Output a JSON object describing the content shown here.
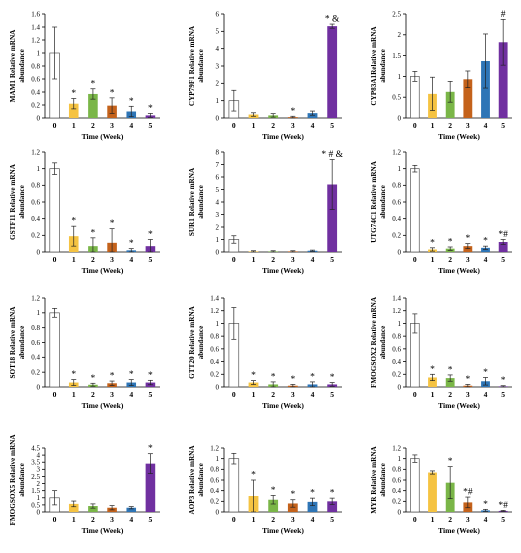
{
  "bar_colors": [
    "#ffffff",
    "#f5c342",
    "#7ab648",
    "#c4621b",
    "#2e75b6",
    "#7030a0"
  ],
  "chart_data": [
    {
      "type": "bar",
      "ylabel": "MAM1 Relative mRNA abundance",
      "xlabel": "Time (Week)",
      "categories": [
        "0",
        "1",
        "2",
        "3",
        "4",
        "5"
      ],
      "ylim": [
        0,
        1.6
      ],
      "yticks": [
        "0",
        "0.2",
        "0.4",
        "0.6",
        "0.8",
        "1",
        "1.2",
        "1.4",
        "1.6"
      ],
      "ytick_values": [
        0,
        0.2,
        0.4,
        0.6,
        0.8,
        1,
        1.2,
        1.4,
        1.6
      ],
      "values": [
        1.0,
        0.22,
        0.37,
        0.19,
        0.1,
        0.04
      ],
      "errors": [
        0.4,
        0.08,
        0.08,
        0.12,
        0.08,
        0.03
      ],
      "annotations": [
        "",
        "*",
        "*",
        "*",
        "*",
        "*"
      ]
    },
    {
      "type": "bar",
      "ylabel": "CYP79F1 Relative mRNA abundance",
      "xlabel": "Time (Week)",
      "categories": [
        "0",
        "1",
        "2",
        "3",
        "4",
        "5"
      ],
      "ylim": [
        0,
        6
      ],
      "yticks": [
        "0",
        "1",
        "2",
        "3",
        "4",
        "5",
        "6"
      ],
      "ytick_values": [
        0,
        1,
        2,
        3,
        4,
        5,
        6
      ],
      "values": [
        1.0,
        0.2,
        0.15,
        0.05,
        0.28,
        5.3
      ],
      "errors": [
        0.6,
        0.1,
        0.1,
        0.05,
        0.12,
        0.12
      ],
      "annotations": [
        "",
        "",
        "",
        "*",
        "",
        "* &"
      ]
    },
    {
      "type": "bar",
      "ylabel": "CYP83A1Relative mRNA abundance",
      "xlabel": "Time (Week)",
      "categories": [
        "0",
        "1",
        "2",
        "3",
        "4",
        "5"
      ],
      "ylim": [
        0,
        2.5
      ],
      "yticks": [
        "0",
        "0.5",
        "1",
        "1.5",
        "2",
        "2.5"
      ],
      "ytick_values": [
        0,
        0.5,
        1,
        1.5,
        2,
        2.5
      ],
      "values": [
        1.0,
        0.58,
        0.63,
        0.93,
        1.37,
        1.82
      ],
      "errors": [
        0.12,
        0.4,
        0.25,
        0.2,
        0.65,
        0.55
      ],
      "annotations": [
        "",
        "",
        "",
        "",
        "",
        "#"
      ]
    },
    {
      "type": "bar",
      "ylabel": "GSTF11 Relative mRNA abundance",
      "xlabel": "Time (Week)",
      "categories": [
        "0",
        "1",
        "2",
        "3",
        "4",
        "5"
      ],
      "ylim": [
        0,
        1.2
      ],
      "yticks": [
        "0",
        "0.2",
        "0.4",
        "0.6",
        "0.8",
        "1",
        "1.2"
      ],
      "ytick_values": [
        0,
        0.2,
        0.4,
        0.6,
        0.8,
        1,
        1.2
      ],
      "values": [
        1.0,
        0.19,
        0.07,
        0.11,
        0.02,
        0.07
      ],
      "errors": [
        0.07,
        0.12,
        0.1,
        0.17,
        0.02,
        0.08
      ],
      "annotations": [
        "",
        "*",
        "*",
        "*",
        "*",
        "*"
      ]
    },
    {
      "type": "bar",
      "ylabel": "SUR1 Relative mRNA abundance",
      "xlabel": "Time (Week)",
      "categories": [
        "0",
        "1",
        "2",
        "3",
        "4",
        "5"
      ],
      "ylim": [
        0,
        8
      ],
      "yticks": [
        "0",
        "1",
        "2",
        "3",
        "4",
        "5",
        "6",
        "7",
        "8"
      ],
      "ytick_values": [
        0,
        1,
        2,
        3,
        4,
        5,
        6,
        7,
        8
      ],
      "values": [
        1.0,
        0.05,
        0.05,
        0.05,
        0.1,
        5.4
      ],
      "errors": [
        0.3,
        0.05,
        0.05,
        0.05,
        0.05,
        2.0
      ],
      "annotations": [
        "",
        "",
        "",
        "",
        "",
        "* # &"
      ]
    },
    {
      "type": "bar",
      "ylabel": "UTG74C1 Relative mRNA abundance",
      "xlabel": "Time (Week)",
      "categories": [
        "0",
        "1",
        "2",
        "3",
        "4",
        "5"
      ],
      "ylim": [
        0,
        1.2
      ],
      "yticks": [
        "0",
        "0.2",
        "0.4",
        "0.6",
        "0.8",
        "1",
        "1.2"
      ],
      "ytick_values": [
        0,
        0.2,
        0.4,
        0.6,
        0.8,
        1,
        1.2
      ],
      "values": [
        1.0,
        0.03,
        0.04,
        0.07,
        0.05,
        0.12
      ],
      "errors": [
        0.04,
        0.02,
        0.02,
        0.03,
        0.02,
        0.03
      ],
      "annotations": [
        "",
        "*",
        "*",
        "*",
        "*",
        "*#"
      ]
    },
    {
      "type": "bar",
      "ylabel": "SOT18 Relative mRNA abundance",
      "xlabel": "Time (Week)",
      "categories": [
        "0",
        "1",
        "2",
        "3",
        "4",
        "5"
      ],
      "ylim": [
        0,
        1.2
      ],
      "yticks": [
        "0",
        "0.2",
        "0.4",
        "0.6",
        "0.8",
        "1",
        "1.2"
      ],
      "ytick_values": [
        0,
        0.2,
        0.4,
        0.6,
        0.8,
        1,
        1.2
      ],
      "values": [
        1.0,
        0.06,
        0.03,
        0.05,
        0.06,
        0.06
      ],
      "errors": [
        0.06,
        0.04,
        0.02,
        0.03,
        0.04,
        0.03
      ],
      "annotations": [
        "",
        "*",
        "*",
        "*",
        "*",
        "*"
      ]
    },
    {
      "type": "bar",
      "ylabel": "GTT20 Relative mRNA abundance",
      "xlabel": "Time (Week)",
      "categories": [
        "0",
        "1",
        "2",
        "3",
        "4",
        "5"
      ],
      "ylim": [
        0,
        1.4
      ],
      "yticks": [
        "0",
        "0.2",
        "0.4",
        "0.6",
        "0.8",
        "1",
        "1.2",
        "1.4"
      ],
      "ytick_values": [
        0,
        0.2,
        0.4,
        0.6,
        0.8,
        1,
        1.2,
        1.4
      ],
      "values": [
        1.0,
        0.07,
        0.04,
        0.02,
        0.04,
        0.04
      ],
      "errors": [
        0.25,
        0.03,
        0.04,
        0.02,
        0.04,
        0.03
      ],
      "annotations": [
        "",
        "*",
        "*",
        "*",
        "*",
        "*"
      ]
    },
    {
      "type": "bar",
      "ylabel": "FMOGSOX2 Relative mRNA abundance",
      "xlabel": "Time (Week)",
      "categories": [
        "0",
        "1",
        "2",
        "3",
        "4",
        "5"
      ],
      "ylim": [
        0,
        1.4
      ],
      "yticks": [
        "0",
        "0.2",
        "0.4",
        "0.6",
        "0.8",
        "1",
        "1.2",
        "1.4"
      ],
      "ytick_values": [
        0,
        0.2,
        0.4,
        0.6,
        0.8,
        1,
        1.2,
        1.4
      ],
      "values": [
        1.0,
        0.15,
        0.14,
        0.02,
        0.09,
        0.01
      ],
      "errors": [
        0.15,
        0.05,
        0.05,
        0.02,
        0.06,
        0.01
      ],
      "annotations": [
        "",
        "*",
        "*",
        "*",
        "*",
        "*"
      ]
    },
    {
      "type": "bar",
      "ylabel": "FMOGSOX5 Relative mRNA abundance",
      "xlabel": "Time (Week)",
      "categories": [
        "0",
        "1",
        "2",
        "3",
        "4",
        "5"
      ],
      "ylim": [
        0,
        4.5
      ],
      "yticks": [
        "0",
        "0.5",
        "1",
        "1.5",
        "2",
        "2.5",
        "3",
        "3.5",
        "4",
        "4.5"
      ],
      "ytick_values": [
        0,
        0.5,
        1,
        1.5,
        2,
        2.5,
        3,
        3.5,
        4,
        4.5
      ],
      "values": [
        1.0,
        0.57,
        0.42,
        0.3,
        0.3,
        3.4
      ],
      "errors": [
        0.5,
        0.2,
        0.15,
        0.15,
        0.08,
        0.7
      ],
      "annotations": [
        "",
        "",
        "",
        "",
        "",
        "*"
      ]
    },
    {
      "type": "bar",
      "ylabel": "AOP3 Relative mRNA abundance",
      "xlabel": "Time (Week)",
      "categories": [
        "0",
        "1",
        "2",
        "3",
        "4",
        "5"
      ],
      "ylim": [
        0,
        1.2
      ],
      "yticks": [
        "0",
        "0.2",
        "0.4",
        "0.6",
        "0.8",
        "1",
        "1.2"
      ],
      "ytick_values": [
        0,
        0.2,
        0.4,
        0.6,
        0.8,
        1,
        1.2
      ],
      "values": [
        1.0,
        0.3,
        0.23,
        0.16,
        0.19,
        0.2
      ],
      "errors": [
        0.1,
        0.3,
        0.08,
        0.07,
        0.07,
        0.06
      ],
      "annotations": [
        "",
        "*",
        "*",
        "*",
        "*",
        "*"
      ]
    },
    {
      "type": "bar",
      "ylabel": "MYR Relative mRNA abundance",
      "xlabel": "Time (Week)",
      "categories": [
        "0",
        "1",
        "2",
        "3",
        "4",
        "5"
      ],
      "ylim": [
        0,
        1.2
      ],
      "yticks": [
        "0",
        "0.2",
        "0.4",
        "0.6",
        "0.8",
        "1",
        "1.2"
      ],
      "ytick_values": [
        0,
        0.2,
        0.4,
        0.6,
        0.8,
        1,
        1.2
      ],
      "values": [
        1.0,
        0.74,
        0.55,
        0.18,
        0.03,
        0.02
      ],
      "errors": [
        0.07,
        0.03,
        0.3,
        0.1,
        0.02,
        0.01
      ],
      "annotations": [
        "",
        "",
        "*",
        "*#",
        "*",
        "*#"
      ]
    }
  ]
}
